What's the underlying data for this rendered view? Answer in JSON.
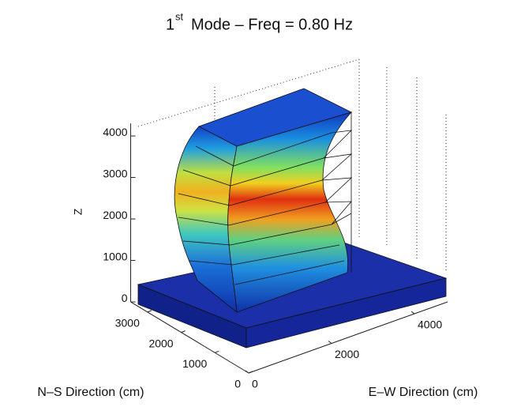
{
  "chart_data": {
    "type": "surface3d",
    "title": {
      "start": "1",
      "superscript": "st",
      "end": "Mode – Freq = 0.80 Hz"
    },
    "zlabel": "Z",
    "xlabel": "N–S Direction (cm)",
    "ylabel": "E–W Direction (cm)",
    "xlim": [
      0,
      3500
    ],
    "xticks": [
      0,
      1000,
      2000,
      3000
    ],
    "ylim": [
      0,
      4800
    ],
    "yticks": [
      0,
      2000,
      4000
    ],
    "zlim": [
      0,
      4300
    ],
    "zticks": [
      0,
      1000,
      2000,
      3000,
      4000
    ]
  }
}
